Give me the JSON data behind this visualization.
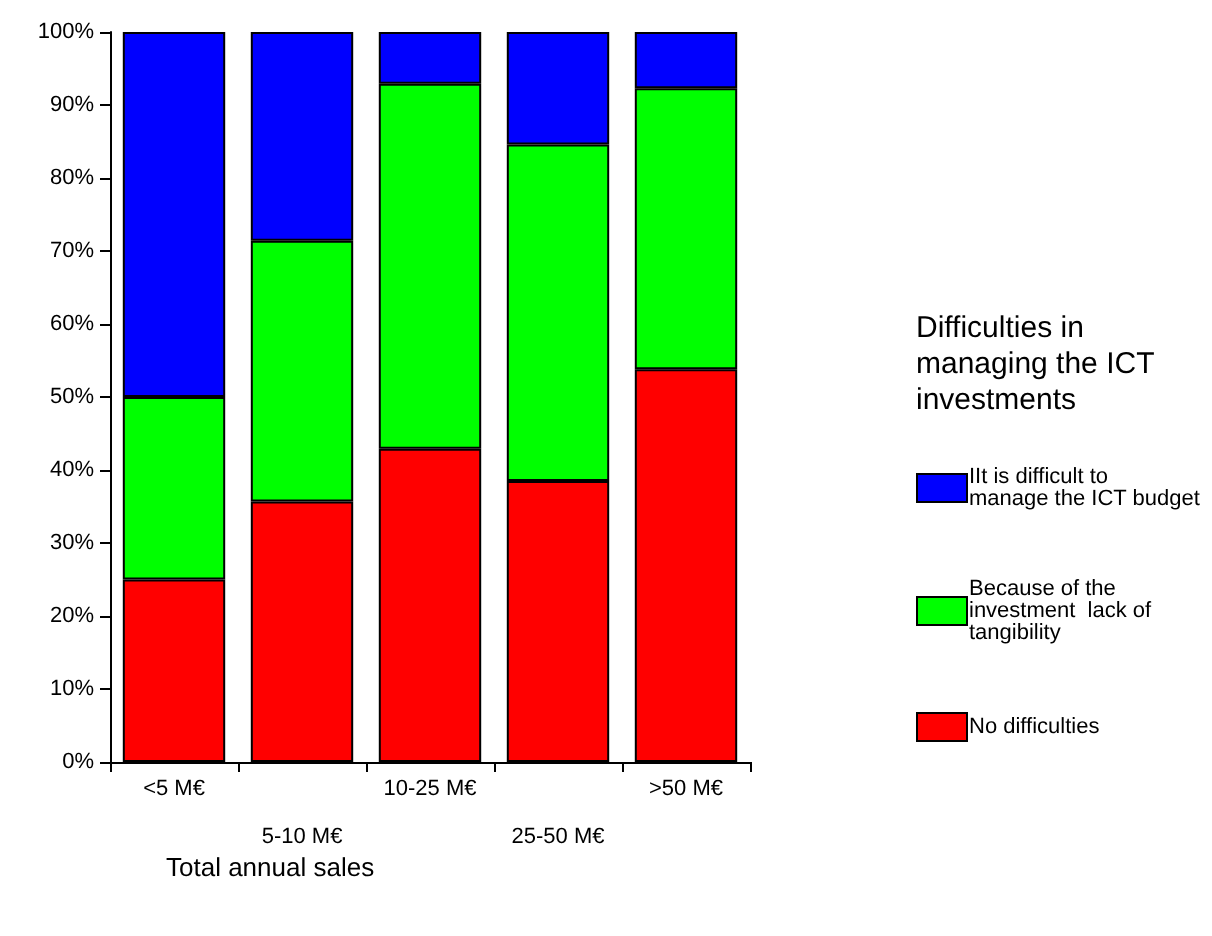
{
  "chart_data": {
    "type": "bar",
    "stacked": true,
    "xlabel": "Total annual sales",
    "legend_title": "Difficulties in managing the ICT investments",
    "legend": "right",
    "categories": [
      "<5 M€",
      "5-10 M€",
      "10-25 M€",
      "25-50 M€",
      ">50 M€"
    ],
    "series": [
      {
        "name": "No difficulties",
        "color": "#ff0000",
        "values": [
          25,
          35.7,
          42.9,
          38.5,
          53.8
        ]
      },
      {
        "name": "Because of the investment  lack of tangibility",
        "color": "#00ff00",
        "values": [
          25,
          35.7,
          50,
          46.1,
          38.5
        ]
      },
      {
        "name": "IIt is difficult to manage the ICT budget",
        "color": "#0000ff",
        "values": [
          50,
          28.6,
          7.1,
          15.4,
          7.7
        ]
      }
    ],
    "ylim": [
      0,
      100
    ],
    "yticks": [
      {
        "value": 0,
        "label": "0%"
      },
      {
        "value": 10,
        "label": "10%"
      },
      {
        "value": 20,
        "label": "20%"
      },
      {
        "value": 30,
        "label": "30%"
      },
      {
        "value": 40,
        "label": "40%"
      },
      {
        "value": 50,
        "label": "50%"
      },
      {
        "value": 60,
        "label": "60%"
      },
      {
        "value": 70,
        "label": "70%"
      },
      {
        "value": 80,
        "label": "80%"
      },
      {
        "value": 90,
        "label": "90%"
      },
      {
        "value": 100,
        "label": "100%"
      }
    ],
    "grid": false
  }
}
